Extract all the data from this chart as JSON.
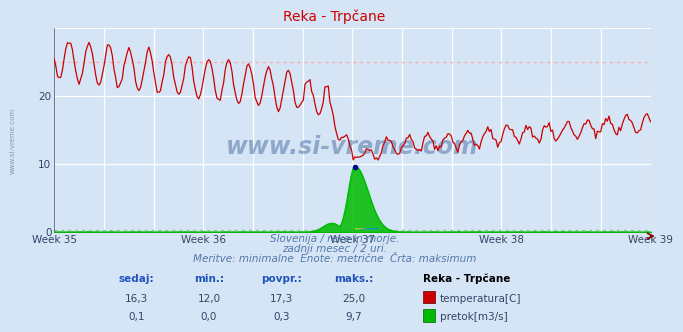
{
  "title": "Reka - Trpčane",
  "bg_color": "#d5e5f5",
  "plot_bg_color": "#d5e5f5",
  "grid_color": "#ffffff",
  "temp_color": "#cc0000",
  "flow_color": "#00bb00",
  "dot_temp_color": "#ff6666",
  "dot_flow_color": "#88cc88",
  "temp_max_line": 25.0,
  "flow_avg_line": 0.3,
  "y_min": 0,
  "y_max": 30,
  "y_ticks": [
    0,
    10,
    20
  ],
  "x_tick_labels": [
    "Week 35",
    "Week 36",
    "Week 37",
    "Week 38",
    "Week 39"
  ],
  "subtitle1": "Slovenija / reke in morje.",
  "subtitle2": "zadnji mesec / 2 uri.",
  "subtitle3": "Meritve: minimalne  Enote: metrične  Črta: maksimum",
  "legend_title": "Reka - Trpčane",
  "col1_label": "sedaj:",
  "col2_label": "min.:",
  "col3_label": "povpr.:",
  "col4_label": "maks.:",
  "row1_vals": [
    "16,3",
    "12,0",
    "17,3",
    "25,0"
  ],
  "row2_vals": [
    "0,1",
    "0,0",
    "0,3",
    "9,7"
  ],
  "row1_label": "temperatura[C]",
  "row2_label": "pretok[m3/s]",
  "watermark": "www.si-vreme.com"
}
